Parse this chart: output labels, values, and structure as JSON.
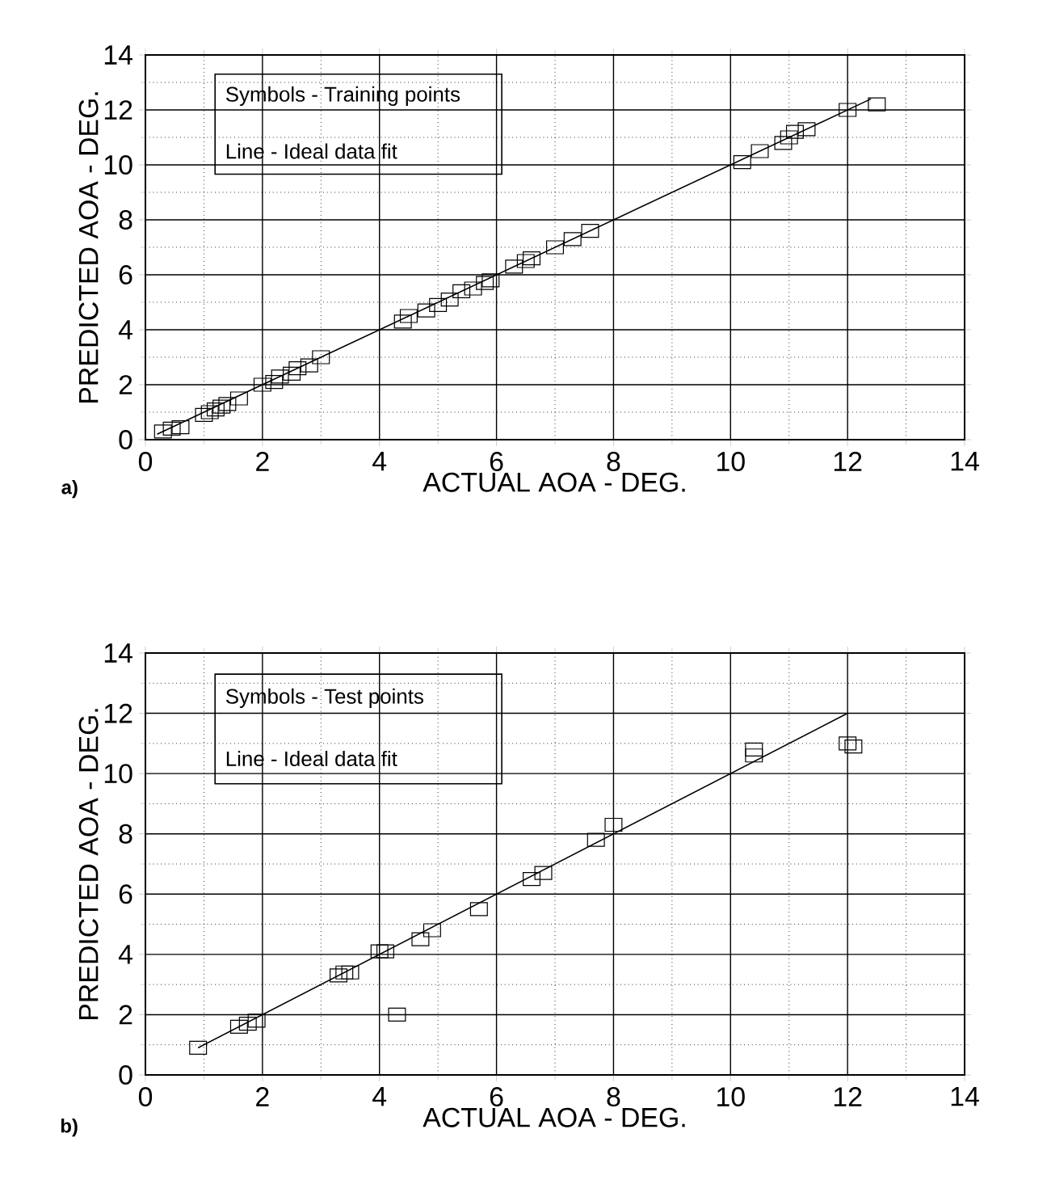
{
  "chart_data": [
    {
      "type": "scatter",
      "xlabel": "ACTUAL AOA - DEG.",
      "ylabel": "PREDICTED AOA - DEG.",
      "xlim": [
        0,
        14
      ],
      "ylim": [
        0,
        14
      ],
      "xticks": [
        0,
        2,
        4,
        6,
        8,
        10,
        12,
        14
      ],
      "yticks": [
        0,
        2,
        4,
        6,
        8,
        10,
        12,
        14
      ],
      "grid": true,
      "marker": "square",
      "series": [
        {
          "color": "#000000",
          "x": [
            0.3,
            0.45,
            0.6,
            1.0,
            1.1,
            1.2,
            1.3,
            1.4,
            1.6,
            2.0,
            2.2,
            2.3,
            2.5,
            2.6,
            2.8,
            3.0,
            4.4,
            4.5,
            4.8,
            5.0,
            5.2,
            5.4,
            5.6,
            5.8,
            5.9,
            6.3,
            6.5,
            6.6,
            7.0,
            7.3,
            7.6,
            10.2,
            10.5,
            10.9,
            11.0,
            11.1,
            11.3,
            12.0,
            12.5
          ],
          "values": [
            0.3,
            0.4,
            0.45,
            0.9,
            1.0,
            1.1,
            1.2,
            1.3,
            1.5,
            2.0,
            2.1,
            2.3,
            2.4,
            2.6,
            2.7,
            3.0,
            4.3,
            4.5,
            4.7,
            4.9,
            5.1,
            5.4,
            5.5,
            5.7,
            5.8,
            6.3,
            6.5,
            6.6,
            7.0,
            7.3,
            7.6,
            10.1,
            10.5,
            10.8,
            11.0,
            11.2,
            11.3,
            12.0,
            12.2
          ]
        },
        {
          "type": "line",
          "marker": "none",
          "color": "#000000",
          "x": [
            0.2,
            12.4
          ],
          "values": [
            0.2,
            12.4
          ]
        }
      ],
      "annotations": [
        "Symbols - Training points",
        "Line - Ideal data fit",
        "a)"
      ]
    },
    {
      "type": "scatter",
      "xlabel": "ACTUAL AOA - DEG.",
      "ylabel": "PREDICTED AOA - DEG.",
      "xlim": [
        0,
        14
      ],
      "ylim": [
        0,
        14
      ],
      "xticks": [
        0,
        2,
        4,
        6,
        8,
        10,
        12,
        14
      ],
      "yticks": [
        0,
        2,
        4,
        6,
        8,
        10,
        12,
        14
      ],
      "grid": true,
      "marker": "square",
      "series": [
        {
          "color": "#000000",
          "x": [
            0.9,
            1.6,
            1.75,
            1.9,
            3.3,
            3.4,
            3.5,
            4.0,
            4.1,
            4.3,
            4.7,
            4.9,
            5.7,
            6.6,
            6.8,
            7.7,
            8.0,
            10.4,
            10.4,
            12.0,
            12.1
          ],
          "values": [
            0.9,
            1.6,
            1.7,
            1.8,
            3.3,
            3.4,
            3.4,
            4.1,
            4.1,
            2.0,
            4.5,
            4.8,
            5.5,
            6.5,
            6.7,
            7.8,
            8.3,
            10.8,
            10.6,
            11.0,
            10.9
          ]
        },
        {
          "type": "line",
          "marker": "none",
          "color": "#000000",
          "x": [
            0.9,
            12.0
          ],
          "values": [
            0.9,
            12.0
          ]
        }
      ],
      "annotations": [
        "Symbols - Test points",
        "Line - Ideal data fit",
        "b)"
      ]
    }
  ]
}
